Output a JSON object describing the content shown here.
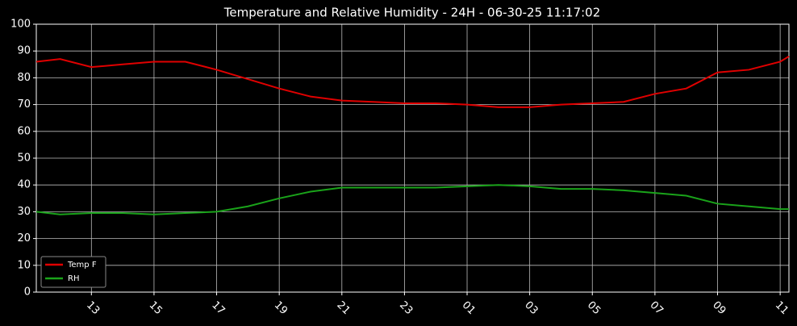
{
  "chart_data": {
    "type": "line",
    "title": "Temperature and Relative Humidity - 24H - 06-30-25 11:17:02",
    "x": [
      11.24,
      12,
      13,
      14,
      15,
      16,
      17,
      18,
      19,
      20,
      21,
      22,
      23,
      24,
      25,
      26,
      27,
      28,
      29,
      30,
      31,
      32,
      33,
      34,
      35,
      35.28
    ],
    "series": [
      {
        "name": "Temp F",
        "color": "#e00000",
        "values": [
          86,
          87,
          84,
          85,
          86,
          86,
          83,
          79.5,
          76,
          73,
          71.5,
          71,
          70.5,
          70.5,
          70,
          69,
          69,
          70,
          70.5,
          71,
          74,
          76,
          82,
          83,
          86,
          88
        ]
      },
      {
        "name": "RH",
        "color": "#1aa31a",
        "values": [
          30,
          29,
          29.5,
          29.5,
          29,
          29.5,
          30,
          32,
          35,
          37.5,
          39,
          39,
          39,
          39,
          39.5,
          40,
          39.5,
          38.5,
          38.5,
          38,
          37,
          36,
          33,
          32,
          31,
          31
        ]
      }
    ],
    "xlim": [
      11.24,
      35.28
    ],
    "xticks": [
      13,
      15,
      17,
      19,
      21,
      23,
      {
        "value": 25,
        "label": "01"
      },
      {
        "value": 27,
        "label": "03"
      },
      {
        "value": 29,
        "label": "05"
      },
      {
        "value": 31,
        "label": "07"
      },
      {
        "value": 33,
        "label": "09"
      },
      {
        "value": 35,
        "label": "11"
      }
    ],
    "ylim": [
      0,
      100
    ],
    "yticks": [
      0,
      10,
      20,
      30,
      40,
      50,
      60,
      70,
      80,
      90,
      100
    ],
    "grid": true,
    "legend": "lower left"
  }
}
